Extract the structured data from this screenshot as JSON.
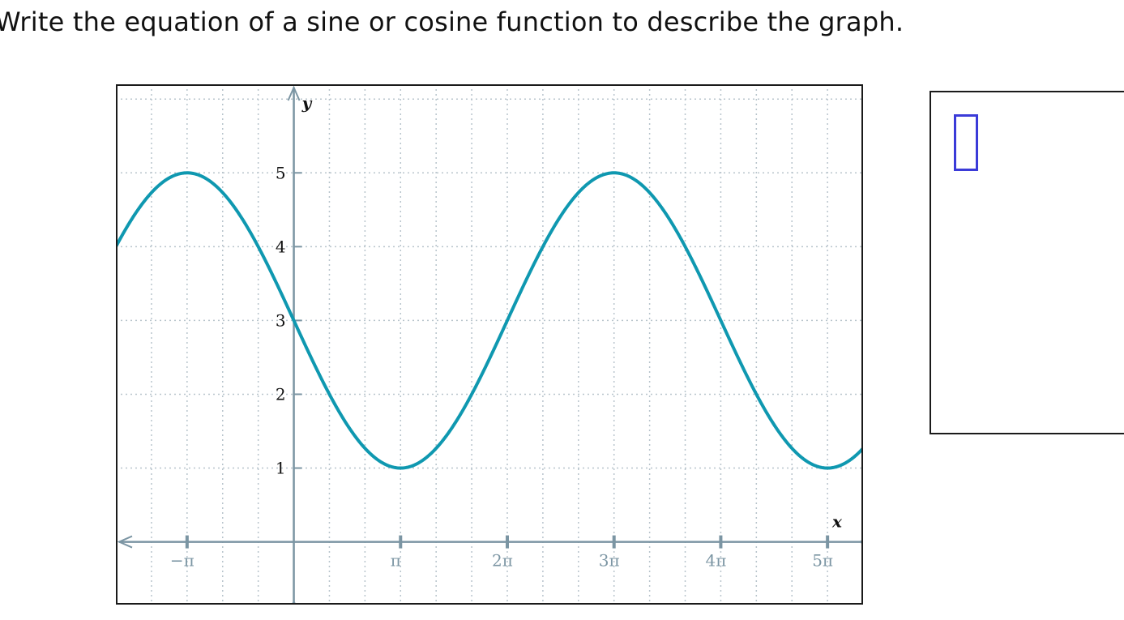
{
  "question": {
    "text": "Write the equation of a sine or cosine function to describe the graph."
  },
  "answer": {
    "value": "",
    "placeholder": ""
  },
  "colors": {
    "curve": "#0f98b0",
    "axis": "#7b95a3",
    "grid": "#b8c4cc"
  },
  "chart_data": {
    "type": "line",
    "title": "",
    "xlabel": "x",
    "ylabel": "y",
    "x_unit": "π",
    "xlim": [
      -1.667,
      5.333
    ],
    "ylim": [
      -0.85,
      6.2
    ],
    "grid": true,
    "x_ticks": [
      {
        "value": -1,
        "label": "−π"
      },
      {
        "value": 1,
        "label": "π"
      },
      {
        "value": 2,
        "label": "2π"
      },
      {
        "value": 3,
        "label": "3π"
      },
      {
        "value": 4,
        "label": "4π"
      },
      {
        "value": 5,
        "label": "5π"
      }
    ],
    "y_ticks": [
      {
        "value": 1,
        "label": "1"
      },
      {
        "value": 2,
        "label": "2"
      },
      {
        "value": 3,
        "label": "3"
      },
      {
        "value": 4,
        "label": "4"
      },
      {
        "value": 5,
        "label": "5"
      }
    ],
    "series": [
      {
        "function": "y = 3 + 2cos((x + π)/2)",
        "x": [
          -1.667,
          -1,
          0,
          1,
          2,
          3,
          4,
          5,
          5.333
        ],
        "y": [
          4.0,
          5,
          3,
          1,
          3,
          5,
          3,
          1,
          1.27
        ]
      }
    ]
  }
}
